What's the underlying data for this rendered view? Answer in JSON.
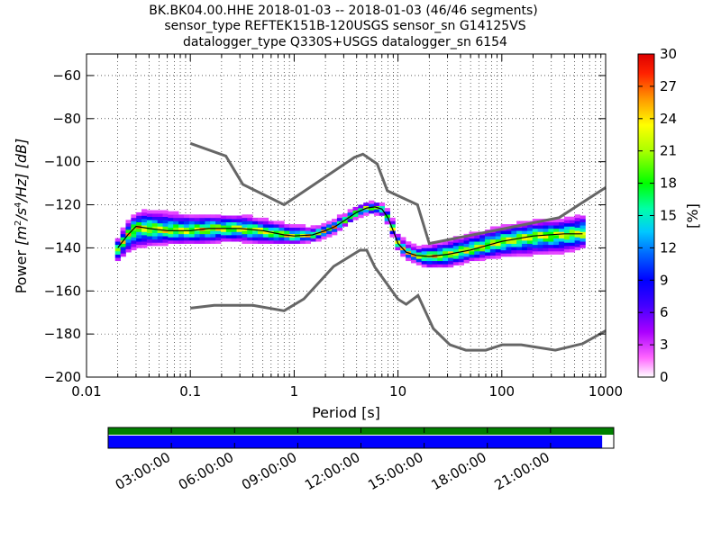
{
  "title_lines": [
    "BK.BK04.00.HHE   2018-01-03 -- 2018-01-03  (46/46 segments)",
    "sensor_type REFTEK151B-120USGS sensor_sn G14125VS",
    "datalogger_type Q330S+USGS datalogger_sn 6154"
  ],
  "chart_data": {
    "type": "heatmap",
    "xlabel": "Period [s]",
    "ylabel": "Power [m²/s⁴/Hz] [dB]",
    "ylabel_parts": {
      "prefix": "Power ",
      "unit_base": "[m",
      "exp1": "2",
      "mid": "/s",
      "exp2": "4",
      "tail": "/Hz] [dB]"
    },
    "x_scale": "log",
    "xlim": [
      0.01,
      1000
    ],
    "ylim": [
      -200,
      -50
    ],
    "x_ticks": [
      {
        "value": 0.01,
        "label": "0.01"
      },
      {
        "value": 0.1,
        "label": "0.1"
      },
      {
        "value": 1,
        "label": "1"
      },
      {
        "value": 10,
        "label": "10"
      },
      {
        "value": 100,
        "label": "100"
      },
      {
        "value": 1000,
        "label": "1000"
      }
    ],
    "y_ticks": [
      {
        "value": -60,
        "label": "−60"
      },
      {
        "value": -80,
        "label": "−80"
      },
      {
        "value": -100,
        "label": "−100"
      },
      {
        "value": -120,
        "label": "−120"
      },
      {
        "value": -140,
        "label": "−140"
      },
      {
        "value": -160,
        "label": "−160"
      },
      {
        "value": -180,
        "label": "−180"
      },
      {
        "value": -200,
        "label": "−200"
      }
    ],
    "grid": true,
    "colorbar": {
      "label": "[%]",
      "range": [
        0,
        30
      ],
      "ticks": [
        {
          "value": 0,
          "label": "0"
        },
        {
          "value": 3,
          "label": "3"
        },
        {
          "value": 6,
          "label": "6"
        },
        {
          "value": 9,
          "label": "9"
        },
        {
          "value": 12,
          "label": "12"
        },
        {
          "value": 15,
          "label": "15"
        },
        {
          "value": 18,
          "label": "18"
        },
        {
          "value": 21,
          "label": "21"
        },
        {
          "value": 24,
          "label": "24"
        },
        {
          "value": 27,
          "label": "27"
        },
        {
          "value": 30,
          "label": "30"
        }
      ]
    },
    "nhnm": {
      "x": [
        0.1,
        0.22,
        0.32,
        0.8,
        3.8,
        4.6,
        6.3,
        7.9,
        15.4,
        20,
        354.8,
        1000
      ],
      "y": [
        -91.5,
        -97.4,
        -110.5,
        -120,
        -98,
        -96.5,
        -101,
        -113.5,
        -120,
        -138,
        -126,
        -112
      ]
    },
    "nlnm": {
      "x": [
        0.1,
        0.17,
        0.4,
        0.8,
        1.24,
        2.4,
        4.3,
        5,
        6,
        10,
        12,
        15.6,
        21.9,
        31.6,
        45,
        70,
        101,
        154,
        328,
        600,
        1000
      ],
      "y": [
        -168,
        -166.7,
        -166.7,
        -169.2,
        -163.7,
        -148.6,
        -141.1,
        -141.1,
        -149,
        -163.8,
        -166.2,
        -162.1,
        -177.5,
        -185,
        -187.5,
        -187.5,
        -185,
        -185,
        -187.5,
        -184.5,
        -178.5
      ]
    },
    "median": {
      "x": [
        0.02,
        0.025,
        0.03,
        0.04,
        0.06,
        0.1,
        0.15,
        0.2,
        0.3,
        0.5,
        0.8,
        1,
        1.5,
        2,
        2.5,
        3,
        4,
        5,
        6,
        7,
        8,
        9,
        10,
        12,
        15,
        20,
        30,
        50,
        100,
        200,
        400,
        600
      ],
      "y": [
        -140,
        -134,
        -130,
        -131,
        -132,
        -132,
        -131,
        -131,
        -131,
        -132,
        -134,
        -134.5,
        -134,
        -132,
        -130,
        -127.5,
        -123.5,
        -121.5,
        -121,
        -122,
        -126,
        -132,
        -138,
        -142,
        -143.5,
        -144,
        -143,
        -141,
        -137,
        -134.5,
        -133.5,
        -133.5
      ]
    },
    "psd_spread": [
      {
        "x": 0.02,
        "low": -146,
        "high": -136,
        "peak": -140
      },
      {
        "x": 0.025,
        "low": -142,
        "high": -128,
        "peak": -134
      },
      {
        "x": 0.03,
        "low": -140,
        "high": -124,
        "peak": -130
      },
      {
        "x": 0.04,
        "low": -139,
        "high": -123,
        "peak": -131
      },
      {
        "x": 0.06,
        "low": -138,
        "high": -124,
        "peak": -132
      },
      {
        "x": 0.1,
        "low": -138,
        "high": -125,
        "peak": -132
      },
      {
        "x": 0.15,
        "low": -138,
        "high": -125,
        "peak": -131
      },
      {
        "x": 0.2,
        "low": -137,
        "high": -125,
        "peak": -131
      },
      {
        "x": 0.3,
        "low": -137,
        "high": -125,
        "peak": -131
      },
      {
        "x": 0.5,
        "low": -138,
        "high": -127,
        "peak": -132
      },
      {
        "x": 0.8,
        "low": -138,
        "high": -129,
        "peak": -134
      },
      {
        "x": 1,
        "low": -138,
        "high": -130,
        "peak": -134.5
      },
      {
        "x": 1.5,
        "low": -137,
        "high": -131,
        "peak": -134
      },
      {
        "x": 2,
        "low": -135,
        "high": -129,
        "peak": -132
      },
      {
        "x": 2.5,
        "low": -133,
        "high": -127,
        "peak": -130
      },
      {
        "x": 3,
        "low": -130,
        "high": -125,
        "peak": -127.5
      },
      {
        "x": 4,
        "low": -126,
        "high": -121,
        "peak": -123.5
      },
      {
        "x": 5,
        "low": -124,
        "high": -119,
        "peak": -121.5
      },
      {
        "x": 6,
        "low": -124,
        "high": -119,
        "peak": -121
      },
      {
        "x": 7,
        "low": -125,
        "high": -120,
        "peak": -122
      },
      {
        "x": 8,
        "low": -129,
        "high": -123,
        "peak": -126
      },
      {
        "x": 9,
        "low": -135,
        "high": -128,
        "peak": -132
      },
      {
        "x": 10,
        "low": -141,
        "high": -134,
        "peak": -138
      },
      {
        "x": 12,
        "low": -145,
        "high": -138,
        "peak": -142
      },
      {
        "x": 15,
        "low": -147,
        "high": -140,
        "peak": -143.5
      },
      {
        "x": 20,
        "low": -149,
        "high": -139,
        "peak": -144
      },
      {
        "x": 30,
        "low": -149,
        "high": -137,
        "peak": -143
      },
      {
        "x": 50,
        "low": -146,
        "high": -134,
        "peak": -141
      },
      {
        "x": 100,
        "low": -144,
        "high": -130,
        "peak": -137
      },
      {
        "x": 200,
        "low": -143,
        "high": -128,
        "peak": -134.5
      },
      {
        "x": 400,
        "low": -142,
        "high": -127,
        "peak": -133.5
      },
      {
        "x": 600,
        "low": -140,
        "high": -125,
        "peak": -133.5
      }
    ],
    "timeline": {
      "labels": [
        "03:00:00",
        "06:00:00",
        "09:00:00",
        "12:00:00",
        "15:00:00",
        "18:00:00",
        "21:00:00"
      ],
      "tick_hours": [
        3,
        6,
        9,
        12,
        15,
        18,
        21
      ],
      "span_hours": [
        0,
        24
      ],
      "coverage": [
        [
          0,
          23.45
        ]
      ],
      "colors": {
        "top_bar": "#008000",
        "bottom_bar": "#0000ff"
      }
    }
  }
}
